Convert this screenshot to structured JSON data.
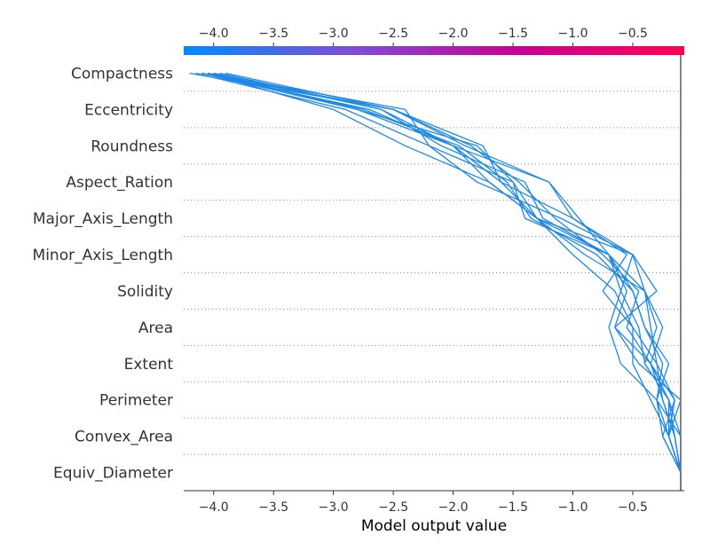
{
  "chart_data": {
    "type": "line",
    "title": "",
    "xlabel": "Model output value",
    "ylabel": "",
    "xlim": [
      -4.25,
      -0.07
    ],
    "x_ticks": [
      -4.0,
      -3.5,
      -3.0,
      -2.5,
      -2.0,
      -1.5,
      -1.0,
      -0.5
    ],
    "x_tick_labels": [
      "−4.0",
      "−3.5",
      "−3.0",
      "−2.5",
      "−2.0",
      "−1.5",
      "−1.0",
      "−0.5"
    ],
    "base_value": -0.1,
    "features": [
      "Compactness",
      "Eccentricity",
      "Roundness",
      "Aspect_Ration",
      "Major_Axis_Length",
      "Minor_Axis_Length",
      "Solidity",
      "Area",
      "Extent",
      "Perimeter",
      "Convex_Area",
      "Equiv_Diameter"
    ],
    "grid": "dotted horizontal",
    "legend": "none",
    "colorbar": {
      "position": "top",
      "colors": [
        "#008bfb",
        "#7d4fd6",
        "#c70093",
        "#ff0051"
      ]
    },
    "line_color": "#1e88e5",
    "series": [
      {
        "values": [
          -4.05,
          -3.0,
          -2.4,
          -1.7,
          -1.3,
          -0.5,
          -0.3,
          -0.65,
          -0.45,
          -0.1,
          -0.2,
          -0.1
        ]
      },
      {
        "values": [
          -4.0,
          -2.6,
          -2.0,
          -1.2,
          -1.0,
          -0.55,
          -0.75,
          -0.5,
          -0.3,
          -0.15,
          -0.2,
          -0.1
        ]
      },
      {
        "values": [
          -4.0,
          -2.8,
          -1.8,
          -1.5,
          -1.3,
          -0.7,
          -0.5,
          -0.4,
          -0.2,
          -0.3,
          -0.1,
          -0.1
        ]
      },
      {
        "values": [
          -3.9,
          -2.5,
          -1.9,
          -1.2,
          -0.95,
          -0.7,
          -0.4,
          -0.25,
          -0.35,
          -0.2,
          -0.15,
          -0.1
        ]
      },
      {
        "values": [
          -4.2,
          -2.5,
          -1.75,
          -1.6,
          -1.0,
          -0.5,
          -0.4,
          -0.35,
          -0.3,
          -0.25,
          -0.15,
          -0.1
        ]
      },
      {
        "values": [
          -4.1,
          -2.7,
          -2.0,
          -1.7,
          -1.3,
          -1.0,
          -0.65,
          -0.5,
          -0.5,
          -0.35,
          -0.2,
          -0.1
        ]
      },
      {
        "values": [
          -4.05,
          -2.4,
          -2.2,
          -1.5,
          -1.4,
          -0.7,
          -0.6,
          -0.7,
          -0.6,
          -0.3,
          -0.25,
          -0.1
        ]
      },
      {
        "values": [
          -4.1,
          -2.8,
          -2.0,
          -1.6,
          -1.3,
          -0.9,
          -0.4,
          -0.3,
          -0.4,
          -0.2,
          -0.2,
          -0.1
        ]
      },
      {
        "values": [
          -3.95,
          -2.6,
          -2.1,
          -1.4,
          -1.25,
          -0.7,
          -0.55,
          -0.65,
          -0.35,
          -0.25,
          -0.15,
          -0.1
        ]
      },
      {
        "values": [
          -4.15,
          -2.9,
          -2.2,
          -1.8,
          -1.1,
          -0.5,
          -0.6,
          -0.45,
          -0.4,
          -0.2,
          -0.1,
          -0.1
        ]
      },
      {
        "values": [
          -4.05,
          -2.75,
          -1.95,
          -1.55,
          -1.35,
          -0.8,
          -0.5,
          -0.4,
          -0.25,
          -0.3,
          -0.2,
          -0.1
        ]
      },
      {
        "values": [
          -4.1,
          -2.5,
          -1.85,
          -1.45,
          -1.15,
          -0.75,
          -0.45,
          -0.55,
          -0.35,
          -0.15,
          -0.25,
          -0.1
        ]
      }
    ]
  }
}
